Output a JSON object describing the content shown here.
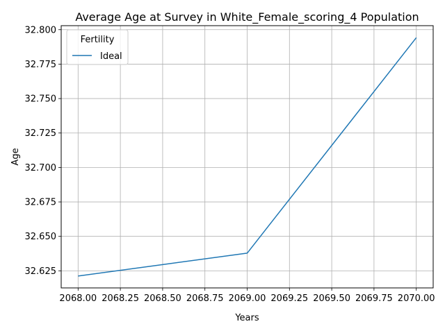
{
  "chart_data": {
    "type": "line",
    "title": "Average Age at Survey in White_Female_scoring_4 Population",
    "xlabel": "Years",
    "ylabel": "Age",
    "xlim": [
      2067.9,
      2070.1
    ],
    "ylim": [
      32.6126,
      32.8029
    ],
    "x_ticks": [
      2068.0,
      2068.25,
      2068.5,
      2068.75,
      2069.0,
      2069.25,
      2069.5,
      2069.75,
      2070.0
    ],
    "x_tick_labels": [
      "2068.00",
      "2068.25",
      "2068.50",
      "2068.75",
      "2069.00",
      "2069.25",
      "2069.50",
      "2069.75",
      "2070.00"
    ],
    "y_ticks": [
      32.625,
      32.65,
      32.675,
      32.7,
      32.725,
      32.75,
      32.775,
      32.8
    ],
    "y_tick_labels": [
      "32.625",
      "32.650",
      "32.675",
      "32.700",
      "32.725",
      "32.750",
      "32.775",
      "32.800"
    ],
    "grid": true,
    "legend": {
      "title": "Fertility",
      "placement": "top-left"
    },
    "series": [
      {
        "name": "Ideal",
        "color": "#1f77b4",
        "x": [
          2068,
          2069,
          2070
        ],
        "y": [
          32.6212,
          32.6378,
          32.7942
        ]
      }
    ]
  }
}
